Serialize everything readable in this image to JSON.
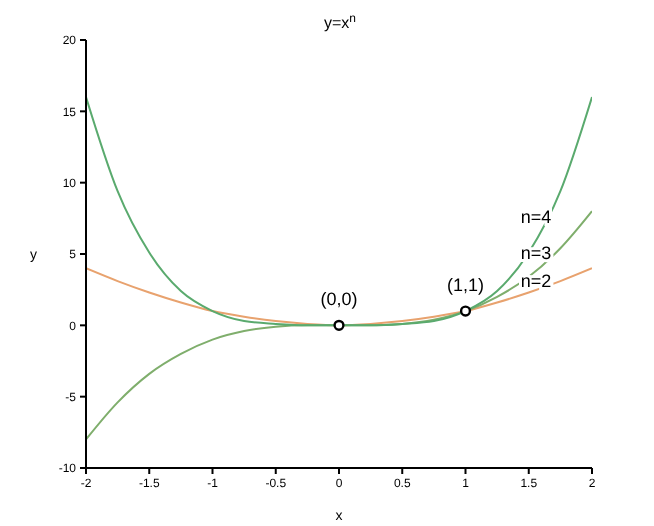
{
  "chart_data": {
    "type": "line",
    "title": "y=x$^{n}$",
    "xlabel": "x",
    "ylabel": "y",
    "x": [
      -2,
      -1.75,
      -1.5,
      -1.25,
      -1,
      -0.75,
      -0.5,
      -0.25,
      0,
      0.25,
      0.5,
      0.75,
      1,
      1.25,
      1.5,
      1.75,
      2
    ],
    "series": [
      {
        "name": "n=2",
        "color": "#e8a26e",
        "values": [
          4,
          3.1,
          2.3,
          1.6,
          1,
          0.6,
          0.3,
          0.1,
          0,
          0.1,
          0.3,
          0.6,
          1,
          1.6,
          2.3,
          3.1,
          4
        ]
      },
      {
        "name": "n=3",
        "color": "#7fae6c",
        "values": [
          -8,
          -5.4,
          -3.4,
          -2,
          -1,
          -0.4,
          -0.1,
          0,
          0,
          0,
          0.1,
          0.4,
          1,
          2,
          3.4,
          5.4,
          8
        ]
      },
      {
        "name": "n=4",
        "color": "#5aaa6e",
        "values": [
          16,
          9.4,
          5.1,
          2.4,
          1,
          0.3,
          0.1,
          0,
          0,
          0,
          0.1,
          0.3,
          1,
          2.4,
          5.1,
          9.4,
          16
        ]
      },
      {
        "type": "scatter",
        "color": "#000000",
        "marker": "circle",
        "x": [
          0,
          1
        ],
        "values": [
          0,
          1
        ]
      }
    ],
    "annotations": [
      {
        "text": "(0,0)",
        "x": 0,
        "y": 0
      },
      {
        "text": "(1,1)",
        "x": 1,
        "y": 1
      }
    ],
    "xlim": [
      -2,
      2
    ],
    "xticks": [
      -2,
      -1.5,
      -1,
      -0.5,
      0,
      0.5,
      1,
      1.5,
      2
    ],
    "ylim": [
      -10,
      20
    ],
    "yticks": [
      -10,
      -5,
      0,
      5,
      10,
      15,
      20
    ]
  }
}
